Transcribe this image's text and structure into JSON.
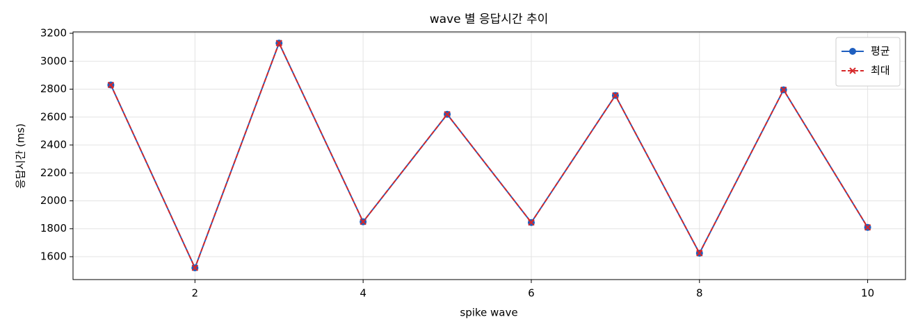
{
  "chart_data": {
    "type": "line",
    "title": "wave 별 응답시간 추이",
    "x_label": "spike wave",
    "y_label": "응답시간 (ms)",
    "x": [
      1,
      2,
      3,
      4,
      5,
      6,
      7,
      8,
      9,
      10
    ],
    "series": [
      {
        "name": "평균",
        "color": "#1f5fbf",
        "marker": "o",
        "linestyle": "solid",
        "values": [
          2830,
          1520,
          3130,
          1850,
          2620,
          1845,
          2755,
          1625,
          2795,
          1810
        ]
      },
      {
        "name": "최대",
        "color": "#d62728",
        "marker": "x",
        "linestyle": "dashed",
        "values": [
          2830,
          1520,
          3130,
          1850,
          2620,
          1845,
          2755,
          1625,
          2795,
          1810
        ]
      }
    ],
    "xlim": [
      0.55,
      10.45
    ],
    "ylim": [
      1436,
      3210
    ],
    "xticks": [
      2,
      4,
      6,
      8,
      10
    ],
    "yticks": [
      1600,
      1800,
      2000,
      2200,
      2400,
      2600,
      2800,
      3000,
      3200
    ],
    "grid": true,
    "legend": "upper right"
  }
}
